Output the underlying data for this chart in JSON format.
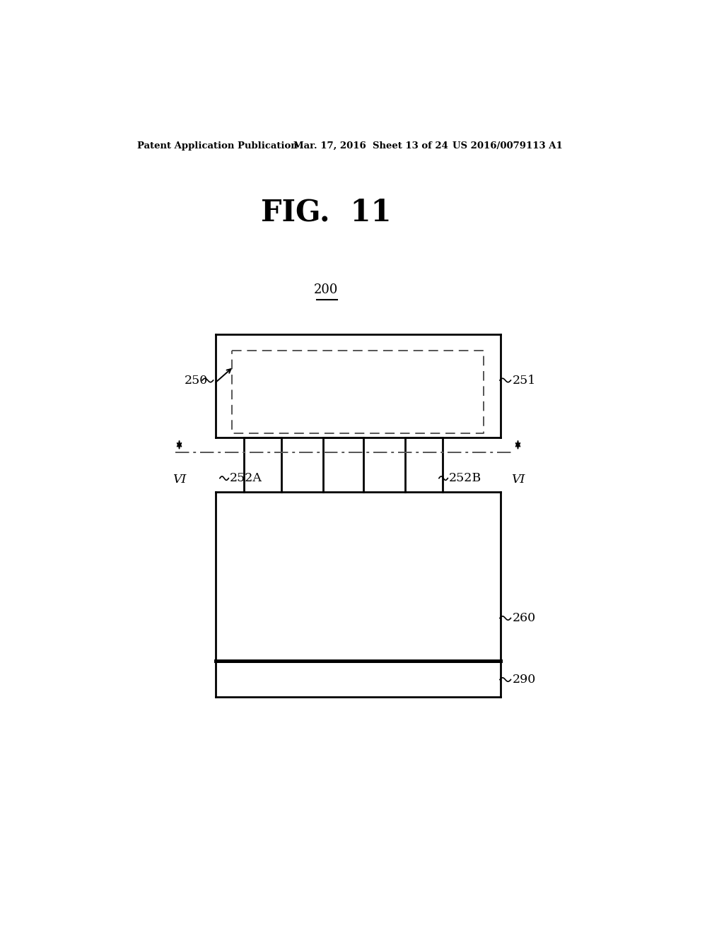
{
  "bg_color": "#ffffff",
  "fig_title": "FIG.  11",
  "header_left": "Patent Application Publication",
  "header_mid": "Mar. 17, 2016  Sheet 13 of 24",
  "header_right": "US 2016/0079113 A1",
  "label_200": "200",
  "label_250": "250",
  "label_251": "251",
  "label_252A": "252A",
  "label_252B": "252B",
  "label_260": "260",
  "label_290": "290",
  "label_VI": "VI",
  "line_color": "#000000",
  "gray_color": "#555555"
}
